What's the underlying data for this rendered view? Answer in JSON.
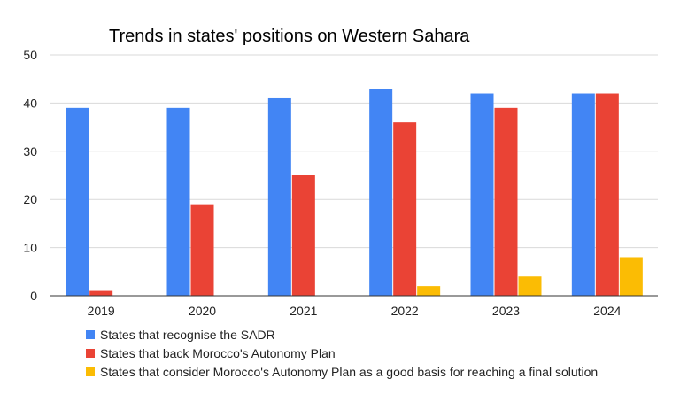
{
  "chart_data": {
    "type": "bar",
    "title": "Trends in states' positions on Western Sahara",
    "xlabel": "",
    "ylabel": "",
    "categories": [
      "2019",
      "2020",
      "2021",
      "2022",
      "2023",
      "2024"
    ],
    "ylim": [
      0,
      50
    ],
    "yticks": [
      0,
      10,
      20,
      30,
      40,
      50
    ],
    "grid": true,
    "legend_position": "bottom",
    "series": [
      {
        "name": "States that recognise the SADR",
        "color": "#4285f4",
        "values": [
          39,
          39,
          41,
          43,
          42,
          42
        ]
      },
      {
        "name": "States that back Morocco's Autonomy Plan",
        "color": "#ea4335",
        "values": [
          1,
          19,
          25,
          36,
          39,
          42
        ]
      },
      {
        "name": "States that consider Morocco's Autonomy Plan as a good basis for reaching a final solution",
        "color": "#fbbc04",
        "values": [
          0,
          0,
          0,
          2,
          4,
          8
        ]
      }
    ]
  }
}
